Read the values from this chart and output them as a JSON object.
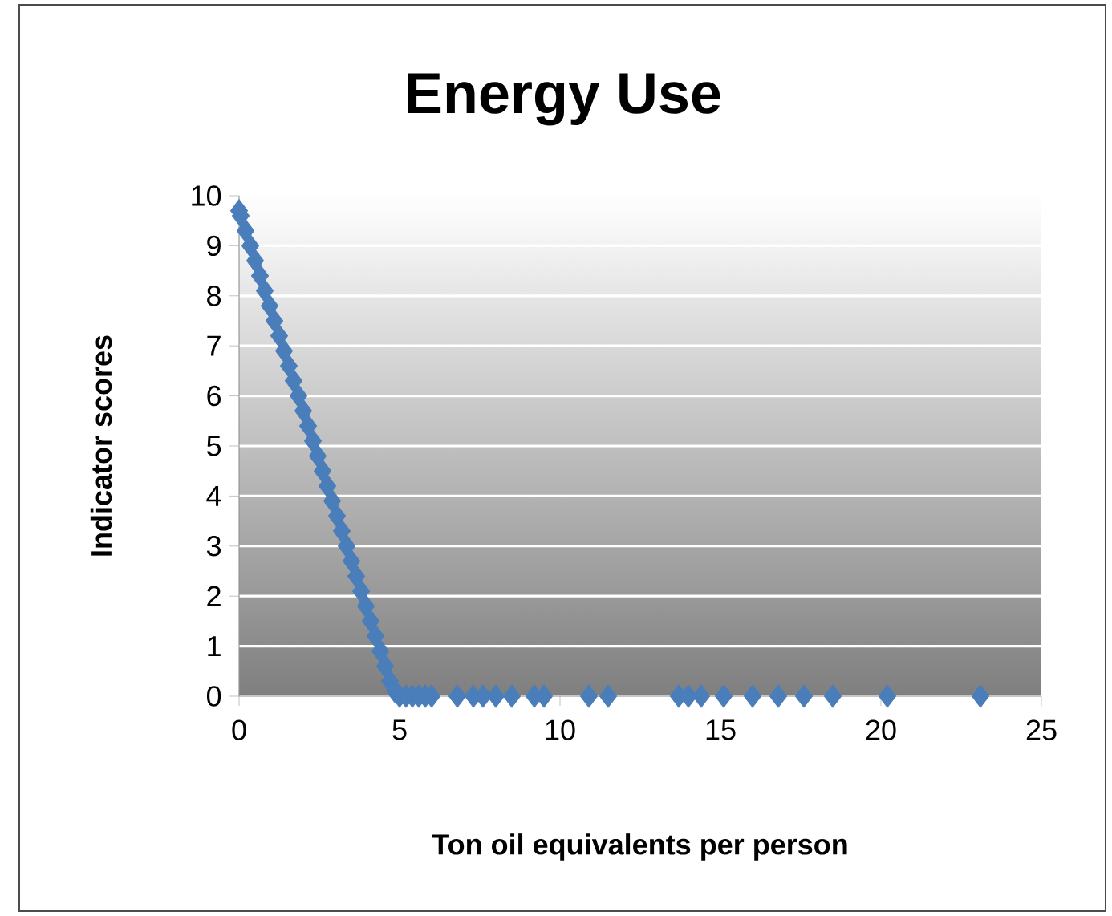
{
  "chart_data": {
    "type": "scatter",
    "title": "Energy Use",
    "xlabel": "Ton oil equivalents per person",
    "ylabel": "Indicator scores",
    "x": [
      0,
      0.05,
      0.2,
      0.35,
      0.5,
      0.65,
      0.8,
      0.95,
      1.1,
      1.25,
      1.4,
      1.55,
      1.7,
      1.85,
      2.0,
      2.15,
      2.3,
      2.45,
      2.6,
      2.75,
      2.9,
      3.05,
      3.2,
      3.35,
      3.5,
      3.65,
      3.8,
      3.95,
      4.1,
      4.25,
      4.4,
      4.55,
      4.7,
      4.85,
      5.0,
      5.2,
      5.4,
      5.6,
      5.8,
      6.0,
      6.8,
      7.3,
      7.6,
      8.0,
      8.5,
      9.2,
      9.5,
      10.9,
      11.5,
      13.7,
      14.0,
      14.4,
      15.1,
      16.0,
      16.8,
      17.6,
      18.5,
      20.2,
      23.1
    ],
    "values": [
      9.7,
      9.6,
      9.3,
      9.0,
      8.7,
      8.4,
      8.1,
      7.8,
      7.5,
      7.2,
      6.9,
      6.6,
      6.3,
      6.0,
      5.7,
      5.4,
      5.1,
      4.8,
      4.5,
      4.2,
      3.9,
      3.6,
      3.3,
      3.0,
      2.7,
      2.4,
      2.1,
      1.8,
      1.5,
      1.2,
      0.9,
      0.6,
      0.3,
      0.1,
      0,
      0,
      0,
      0,
      0,
      0,
      0,
      0,
      0,
      0,
      0,
      0,
      0,
      0,
      0,
      0,
      0,
      0,
      0,
      0,
      0,
      0,
      0,
      0,
      0
    ],
    "color": "#4a7ebb",
    "marker": "diamond",
    "xlim": [
      0,
      25
    ],
    "ylim": [
      0,
      10
    ],
    "xticks": [
      0,
      5,
      10,
      15,
      20,
      25
    ],
    "yticks": [
      0,
      1,
      2,
      3,
      4,
      5,
      6,
      7,
      8,
      9,
      10
    ],
    "grid": "y"
  }
}
